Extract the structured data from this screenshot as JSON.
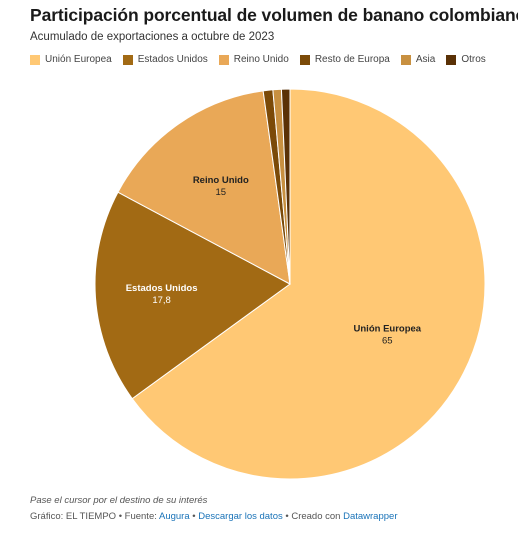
{
  "header": {
    "title": "Participación porcentual de volumen de banano colombiano",
    "subtitle": "Acumulado de exportaciones a octubre de 2023"
  },
  "chart_data": {
    "type": "pie",
    "title": "Participación porcentual de volumen de banano colombiano",
    "subtitle": "Acumulado de exportaciones a octubre de 2023",
    "legend_position": "top",
    "slices": [
      {
        "name": "Unión Europea",
        "value": 65,
        "color": "#ffc874",
        "label": "65",
        "label_color": "#222222"
      },
      {
        "name": "Estados Unidos",
        "value": 17.8,
        "color": "#a26a14",
        "label": "17,8",
        "label_color": "#ffffff"
      },
      {
        "name": "Reino Unido",
        "value": 15,
        "color": "#e9a857",
        "label": "15",
        "label_color": "#222222"
      },
      {
        "name": "Resto de Europa",
        "value": 0.8,
        "color": "#7b4a08",
        "label": "",
        "label_color": "#222222"
      },
      {
        "name": "Asia",
        "value": 0.7,
        "color": "#c89040",
        "label": "",
        "label_color": "#222222"
      },
      {
        "name": "Otros",
        "value": 0.7,
        "color": "#5a3106",
        "label": "",
        "label_color": "#222222"
      }
    ]
  },
  "footer": {
    "note": "Pase el cursor por el destino de su interés",
    "credit_prefix": "Gráfico: EL TIEMPO • Fuente: ",
    "source_link": "Augura",
    "separator1": " • ",
    "download_link": "Descargar los datos",
    "separator2": " • Creado con ",
    "tool_link": "Datawrapper"
  }
}
